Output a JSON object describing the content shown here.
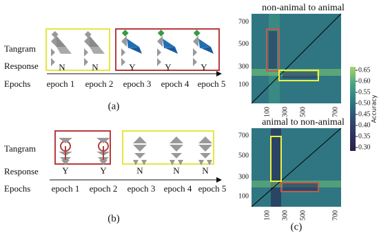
{
  "panel_a": {
    "row_labels": [
      "Tangram",
      "Response",
      "Epochs"
    ],
    "responses": [
      "N",
      "N",
      "Y",
      "Y",
      "Y"
    ],
    "epochs": [
      "epoch 1",
      "epoch 2",
      "epoch 3",
      "epoch 4",
      "epoch 5"
    ],
    "caption": "(a)"
  },
  "panel_b": {
    "row_labels": [
      "Tangram",
      "Response",
      "Epochs"
    ],
    "responses": [
      "Y",
      "Y",
      "N",
      "N",
      "N"
    ],
    "epochs": [
      "epoch 1",
      "epoch 2",
      "epoch 3",
      "epoch 4",
      "epoch 5"
    ],
    "caption": "(b)"
  },
  "panel_c": {
    "heatmaps": [
      {
        "title": "non-animal to animal",
        "xticks": [
          "100",
          "300",
          "500",
          "700"
        ],
        "yticks": [
          "700",
          "500",
          "300",
          "100"
        ]
      },
      {
        "title": "animal to non-animal",
        "xticks": [
          "100",
          "300",
          "500",
          "700"
        ],
        "yticks": [
          "700",
          "500",
          "300",
          "100"
        ]
      }
    ],
    "colorbar": {
      "label": "Accuracy",
      "ticks": [
        "0.65",
        "0.60",
        "0.55",
        "0.50",
        "0.45",
        "0.40",
        "0.35",
        "0.30"
      ]
    },
    "caption": "(c)"
  }
}
